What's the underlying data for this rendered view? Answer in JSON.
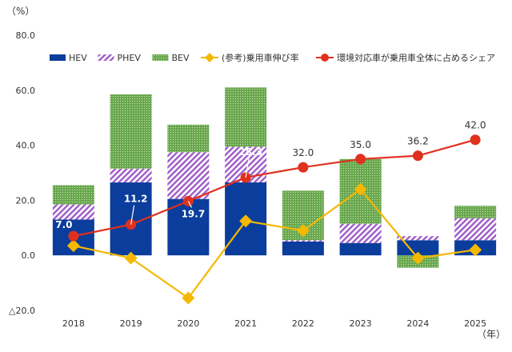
{
  "chart_data": {
    "type": "bar",
    "y_unit": "（%）",
    "x_unit": "（年）",
    "categories": [
      "2018",
      "2019",
      "2020",
      "2021",
      "2022",
      "2023",
      "2024",
      "2025"
    ],
    "ylim": [
      -20,
      80
    ],
    "yticks": [
      80,
      60,
      40,
      20,
      0,
      -20
    ],
    "ytick_labels": [
      "80.0",
      "60.0",
      "40.0",
      "20.0",
      "0.0",
      "△20.0"
    ],
    "stack_series": [
      {
        "name": "HEV",
        "color": "#0a3d9c",
        "values": [
          13.0,
          26.5,
          20.5,
          26.5,
          5.0,
          4.5,
          5.5,
          5.5
        ]
      },
      {
        "name": "PHEV",
        "color": "#9e5bc9",
        "pattern": "stripes",
        "values": [
          5.5,
          5.0,
          17.0,
          13.0,
          0.5,
          7.0,
          1.5,
          8.0
        ]
      },
      {
        "name": "BEV",
        "color": "#6aa84f",
        "pattern": "dots",
        "values": [
          7.0,
          27.0,
          10.0,
          21.5,
          18.0,
          23.5,
          -4.5,
          4.5
        ]
      }
    ],
    "line_series": [
      {
        "name": "(参考)乗用車伸び率",
        "color": "#f5b800",
        "marker": "diamond",
        "values": [
          3.5,
          -1.0,
          -15.5,
          12.5,
          9.0,
          24.0,
          -1.0,
          2.0
        ]
      },
      {
        "name": "環境対応車が乗用車全体に占めるシェア",
        "color": "#e0301e",
        "marker": "circle",
        "values": [
          7.0,
          11.2,
          19.7,
          28.3,
          32.0,
          35.0,
          36.2,
          42.0
        ],
        "labels": [
          "7.0",
          "11.2",
          "19.7",
          "28.3",
          "32.0",
          "35.0",
          "36.2",
          "42.0"
        ]
      }
    ],
    "legend_position": "top",
    "grid": false
  }
}
